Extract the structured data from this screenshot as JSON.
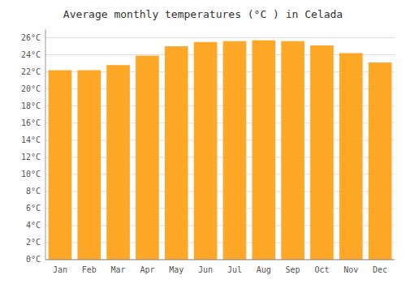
{
  "chart_data": {
    "type": "bar",
    "title": "Average monthly temperatures (°C ) in Celada",
    "categories": [
      "Jan",
      "Feb",
      "Mar",
      "Apr",
      "May",
      "Jun",
      "Jul",
      "Aug",
      "Sep",
      "Oct",
      "Nov",
      "Dec"
    ],
    "values": [
      22.2,
      22.2,
      22.8,
      23.9,
      25.0,
      25.5,
      25.6,
      25.7,
      25.6,
      25.1,
      24.2,
      23.1
    ],
    "color": "#FFA726",
    "ylim": [
      0,
      27
    ],
    "yticks": [
      {
        "value": 0,
        "label": "0°C"
      },
      {
        "value": 2,
        "label": "2°C"
      },
      {
        "value": 4,
        "label": "4°C"
      },
      {
        "value": 6,
        "label": "6°C"
      },
      {
        "value": 8,
        "label": "8°C"
      },
      {
        "value": 10,
        "label": "10°C"
      },
      {
        "value": 12,
        "label": "12°C"
      },
      {
        "value": 14,
        "label": "14°C"
      },
      {
        "value": 16,
        "label": "16°C"
      },
      {
        "value": 18,
        "label": "18°C"
      },
      {
        "value": 20,
        "label": "20°C"
      },
      {
        "value": 22,
        "label": "22°C"
      },
      {
        "value": 24,
        "label": "24°C"
      },
      {
        "value": 26,
        "label": "26°C"
      }
    ],
    "grid": true
  }
}
